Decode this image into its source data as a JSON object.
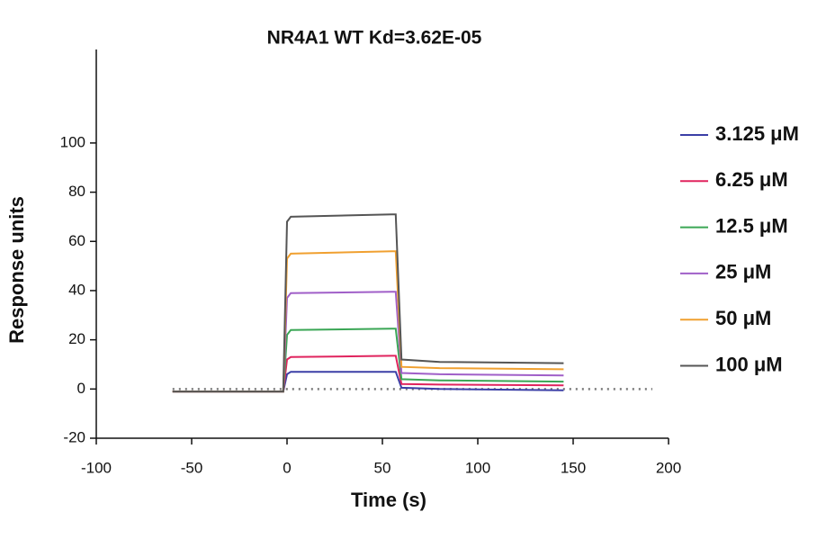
{
  "chart_data": {
    "type": "line",
    "title": "NR4A1 WT    Kd=3.62E-05",
    "x_label": "Time (s)",
    "y_label": "Response units",
    "x": [
      -60,
      -2,
      0,
      2,
      55,
      57,
      60,
      80,
      145
    ],
    "series": [
      {
        "name": "3.125 μM",
        "color": "#3b3fa6",
        "values": [
          -1,
          -1,
          6,
          7,
          7,
          7,
          0.5,
          0,
          -0.5
        ]
      },
      {
        "name": "6.25 μM",
        "color": "#e0245e",
        "values": [
          -1,
          -1,
          12,
          13,
          13.5,
          13.5,
          2,
          1.8,
          1.5
        ]
      },
      {
        "name": "12.5 μM",
        "color": "#3aa655",
        "values": [
          -1,
          -1,
          22,
          24,
          24.5,
          24.5,
          4,
          3.5,
          3
        ]
      },
      {
        "name": "25 μM",
        "color": "#a05fc8",
        "values": [
          -1,
          -1,
          37,
          39,
          39.5,
          39.5,
          6.5,
          6,
          5.5
        ]
      },
      {
        "name": "50 μM",
        "color": "#f0a030",
        "values": [
          -1,
          -1,
          53,
          55,
          56,
          56,
          9,
          8.5,
          8
        ]
      },
      {
        "name": "100 μM",
        "color": "#555555",
        "values": [
          -1,
          -1,
          68,
          70,
          71,
          71,
          12,
          11,
          10.5
        ]
      }
    ],
    "reference_y": 0,
    "xlim": [
      -100,
      200
    ],
    "ylim": [
      -20,
      138
    ],
    "xticks": [
      -100,
      -50,
      0,
      50,
      100,
      150,
      200
    ],
    "yticks": [
      -20,
      0,
      20,
      40,
      60,
      80,
      100
    ]
  }
}
